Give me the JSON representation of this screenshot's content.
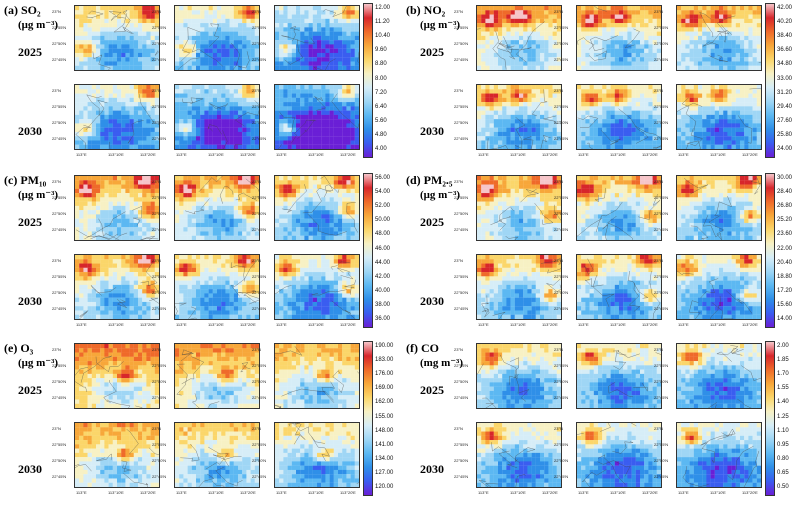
{
  "chart_data": [
    {
      "id": "a",
      "type": "heatmap",
      "title": "(a) SO₂",
      "unit": "(μg m⁻³)",
      "rows": [
        "2025",
        "2030"
      ],
      "columns_per_row": 3,
      "colorbar_ticks": [
        "12.00",
        "11.20",
        "10.40",
        "9.60",
        "8.80",
        "8.00",
        "7.20",
        "6.40",
        "5.60",
        "4.80",
        "4.00"
      ],
      "value_range": [
        4.0,
        12.0
      ],
      "mean_levels": [
        [
          8.2,
          7.6,
          6.9
        ],
        [
          7.4,
          6.5,
          5.8
        ]
      ],
      "hotspots": [
        [
          0.12,
          0.7
        ],
        [
          0.9,
          0.08
        ]
      ]
    },
    {
      "id": "b",
      "type": "heatmap",
      "title": "(b) NO₂",
      "unit": "(μg m⁻³)",
      "rows": [
        "2025",
        "2030"
      ],
      "columns_per_row": 3,
      "colorbar_ticks": [
        "42.00",
        "40.20",
        "38.40",
        "36.60",
        "34.80",
        "33.00",
        "31.20",
        "29.40",
        "27.60",
        "25.80",
        "24.00"
      ],
      "value_range": [
        24.0,
        42.0
      ],
      "mean_levels": [
        [
          0.62,
          0.58,
          0.56
        ],
        [
          0.5,
          0.46,
          0.44
        ]
      ],
      "hotspots": [
        [
          0.5,
          0.15
        ],
        [
          0.15,
          0.2
        ]
      ]
    },
    {
      "id": "c",
      "type": "heatmap",
      "title": "(c) PM₁₀",
      "unit": "(μg m⁻³)",
      "rows": [
        "2025",
        "2030"
      ],
      "columns_per_row": 3,
      "colorbar_ticks": [
        "56.00",
        "54.00",
        "52.00",
        "50.00",
        "48.00",
        "46.00",
        "44.00",
        "42.00",
        "40.00",
        "38.00",
        "36.00"
      ],
      "value_range": [
        36.0,
        56.0
      ],
      "mean_levels": [
        [
          0.62,
          0.58,
          0.5
        ],
        [
          0.55,
          0.5,
          0.44
        ]
      ],
      "hotspots": [
        [
          0.85,
          0.05
        ],
        [
          0.12,
          0.2
        ],
        [
          0.9,
          0.55
        ]
      ]
    },
    {
      "id": "d",
      "type": "heatmap",
      "title": "(d) PM₂.₅",
      "unit": "(μg m⁻³)",
      "rows": [
        "2025",
        "2030"
      ],
      "columns_per_row": 3,
      "colorbar_ticks": [
        "30.00",
        "28.40",
        "26.80",
        "25.20",
        "23.60",
        "22.00",
        "20.40",
        "18.80",
        "17.20",
        "15.60",
        "14.00"
      ],
      "value_range": [
        14.0,
        30.0
      ],
      "mean_levels": [
        [
          0.6,
          0.56,
          0.52
        ],
        [
          0.52,
          0.48,
          0.44
        ]
      ],
      "hotspots": [
        [
          0.85,
          0.05
        ],
        [
          0.1,
          0.2
        ],
        [
          0.88,
          0.65
        ]
      ]
    },
    {
      "id": "e",
      "type": "heatmap",
      "title": "(e) O₃",
      "unit": "(μg m⁻³)",
      "rows": [
        "2025",
        "2030"
      ],
      "columns_per_row": 3,
      "colorbar_ticks": [
        "190.00",
        "183.00",
        "176.00",
        "169.00",
        "162.00",
        "155.00",
        "148.00",
        "141.00",
        "134.00",
        "127.00",
        "120.00"
      ],
      "value_range": [
        120.0,
        190.0
      ],
      "mean_levels": [
        [
          0.7,
          0.66,
          0.6
        ],
        [
          0.62,
          0.56,
          0.5
        ]
      ],
      "hotspots": [
        [
          0.6,
          0.5
        ]
      ]
    },
    {
      "id": "f",
      "type": "heatmap",
      "title": "(f) CO",
      "unit": "(mg m⁻³)",
      "rows": [
        "2025",
        "2030"
      ],
      "columns_per_row": 3,
      "colorbar_ticks": [
        "2.00",
        "1.85",
        "1.70",
        "1.55",
        "1.40",
        "1.25",
        "1.10",
        "0.95",
        "0.80",
        "0.65",
        "0.50"
      ],
      "value_range": [
        0.5,
        2.0
      ],
      "mean_levels": [
        [
          0.5,
          0.47,
          0.44
        ],
        [
          0.46,
          0.42,
          0.4
        ]
      ],
      "hotspots": [
        [
          0.15,
          0.2
        ]
      ]
    }
  ],
  "axis_labels": {
    "lat": [
      "23°N",
      "22°55′N",
      "22°50′N",
      "22°45′N"
    ],
    "lon": [
      "113°E",
      "113°10′E",
      "113°20′E"
    ]
  },
  "colormap": [
    "#6a1fd6",
    "#3a5df0",
    "#2f8fe8",
    "#5cb8f2",
    "#9fd6f5",
    "#d6edf7",
    "#f7f1c4",
    "#fbd66a",
    "#f7a73a",
    "#ef6a2a",
    "#d7262b",
    "#f6c5c9"
  ]
}
